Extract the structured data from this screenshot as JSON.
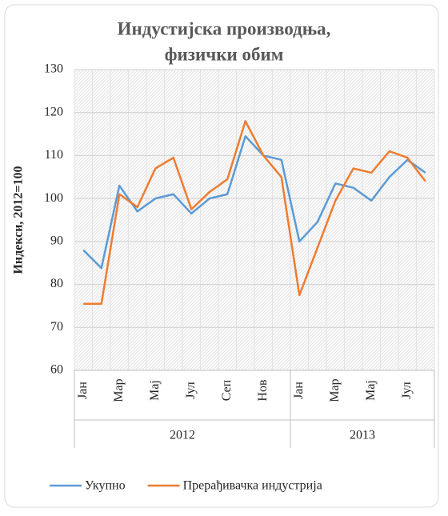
{
  "chart_data": {
    "type": "line",
    "title": [
      "Индустијска производња,",
      "физички обим"
    ],
    "y_label": "Индекси, 2012=100",
    "categories": [
      "Јан",
      null,
      "Мар",
      null,
      "Мај",
      null,
      "Јул",
      null,
      "Сеп",
      null,
      "Нов",
      null,
      "Јан",
      null,
      "Мар",
      null,
      "Мај",
      null,
      "Јул",
      null
    ],
    "groups": [
      "2012",
      "2013"
    ],
    "series": [
      {
        "name": "Укупно",
        "color": "#5b9bd5",
        "values": [
          88,
          83.8,
          103,
          97,
          100,
          101,
          96.5,
          100,
          101,
          114.5,
          110,
          109,
          90,
          94.5,
          103.5,
          102.5,
          99.5,
          105,
          109,
          106
        ]
      },
      {
        "name": "Прерађивачка индустрија",
        "color": "#ed7d31",
        "values": [
          75.5,
          75.5,
          101,
          98,
          107,
          109.5,
          97.5,
          101.5,
          104.5,
          118,
          110,
          105,
          77.5,
          88.5,
          99.5,
          107,
          106,
          111,
          109.5,
          104
        ]
      }
    ],
    "ylim": [
      60,
      130
    ],
    "yticks": [
      60,
      70,
      80,
      90,
      100,
      110,
      120,
      130
    ],
    "grid": true,
    "legend": "bottom"
  }
}
